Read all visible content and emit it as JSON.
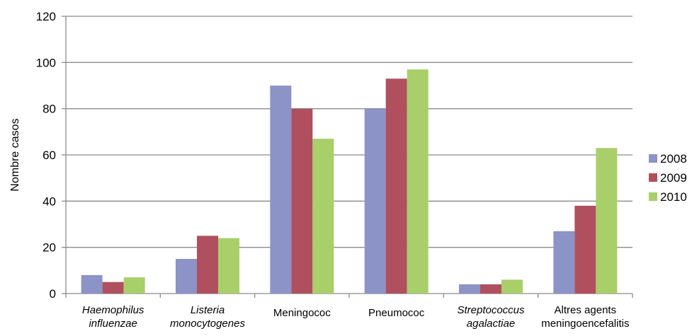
{
  "chart_data": {
    "type": "bar",
    "title": "",
    "xlabel": "",
    "ylabel": "Nombre casos",
    "ylim": [
      0,
      120
    ],
    "yticks": [
      0,
      20,
      40,
      60,
      80,
      100,
      120
    ],
    "grid": true,
    "legend_position": "right",
    "categories": [
      {
        "lines": [
          "Haemophilus",
          "influenzae"
        ],
        "italic": true
      },
      {
        "lines": [
          "Listeria",
          "monocytogenes"
        ],
        "italic": true
      },
      {
        "lines": [
          "Meningococ"
        ],
        "italic": false
      },
      {
        "lines": [
          "Pneumococ"
        ],
        "italic": false
      },
      {
        "lines": [
          "Streptococcus",
          "agalactiae"
        ],
        "italic": true
      },
      {
        "lines": [
          "Altres agents",
          "meningoencefalitis"
        ],
        "italic": false
      }
    ],
    "series": [
      {
        "name": "2008",
        "color": "#8B93C7",
        "values": [
          8,
          15,
          90,
          80,
          4,
          27
        ]
      },
      {
        "name": "2009",
        "color": "#B0505E",
        "values": [
          5,
          25,
          80,
          93,
          4,
          38
        ]
      },
      {
        "name": "2010",
        "color": "#A8CF6A",
        "values": [
          7,
          24,
          67,
          97,
          6,
          63
        ]
      }
    ]
  }
}
